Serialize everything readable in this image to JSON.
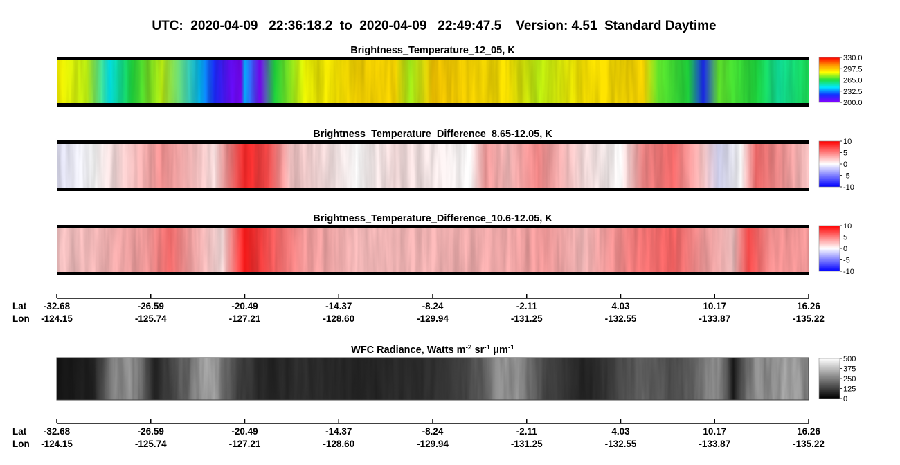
{
  "title": "UTC:  2020-04-09   22:36:18.2  to  2020-04-09   22:49:47.5    Version: 4.51  Standard Daytime",
  "panels": [
    {
      "title": "Brightness_Temperature_12_05, K",
      "colorbar": {
        "clim": [
          200,
          330
        ],
        "colors": [
          "#8a00ff",
          "#1030ff",
          "#00e8ff",
          "#20e040",
          "#ffff00",
          "#ff9000",
          "#ff0000"
        ],
        "ticks": [
          {
            "value": 330,
            "label": "330.0"
          },
          297.5,
          {
            "value": 265,
            "label": "265.0"
          },
          232.5,
          {
            "value": 200,
            "label": "200.0"
          }
        ]
      }
    },
    {
      "title": "Brightness_Temperature_Difference_8.65-12.05, K",
      "colorbar": {
        "clim": [
          -10,
          10
        ],
        "colors": [
          "#0000ff",
          "#ffffff",
          "#ff0000"
        ],
        "ticks": [
          10,
          5,
          0,
          -5,
          -10
        ]
      }
    },
    {
      "title": "Brightness_Temperature_Difference_10.6-12.05, K",
      "colorbar": {
        "clim": [
          -10,
          10
        ],
        "colors": [
          "#0000ff",
          "#ffffff",
          "#ff0000"
        ],
        "ticks": [
          10,
          5,
          0,
          -5,
          -10
        ]
      }
    },
    {
      "title_parts": [
        {
          "text": "WFC Radiance, Watts m"
        },
        {
          "sup": "-2"
        },
        {
          "text": " sr"
        },
        {
          "sup": "-1"
        },
        {
          "text": " μm"
        },
        {
          "sup": "-1"
        }
      ],
      "colorbar": {
        "clim": [
          0,
          500
        ],
        "colors": [
          "#000000",
          "#ffffff"
        ],
        "ticks": [
          500,
          375,
          250,
          125,
          0
        ]
      }
    }
  ],
  "axes": [
    {
      "lat_label": "Lat",
      "lon_label": "Lon",
      "lat": [
        -32.68,
        -26.59,
        -20.49,
        -14.37,
        -8.24,
        -2.11,
        4.03,
        10.17,
        16.26
      ],
      "lon": [
        -124.15,
        -125.74,
        -127.21,
        {
          "value": -128.6,
          "label": "-128.60"
        },
        -129.94,
        -131.25,
        -132.55,
        -133.87,
        -135.22
      ]
    },
    {
      "lat_label": "Lat",
      "lon_label": "Lon",
      "lat": [
        -32.68,
        -26.59,
        -20.49,
        -14.37,
        -8.24,
        -2.11,
        4.03,
        10.17,
        16.26
      ],
      "lon": [
        -124.15,
        -125.74,
        -127.21,
        {
          "value": -128.6,
          "label": "-128.60"
        },
        -129.94,
        -131.25,
        -132.55,
        -133.87,
        -135.22
      ]
    }
  ]
}
